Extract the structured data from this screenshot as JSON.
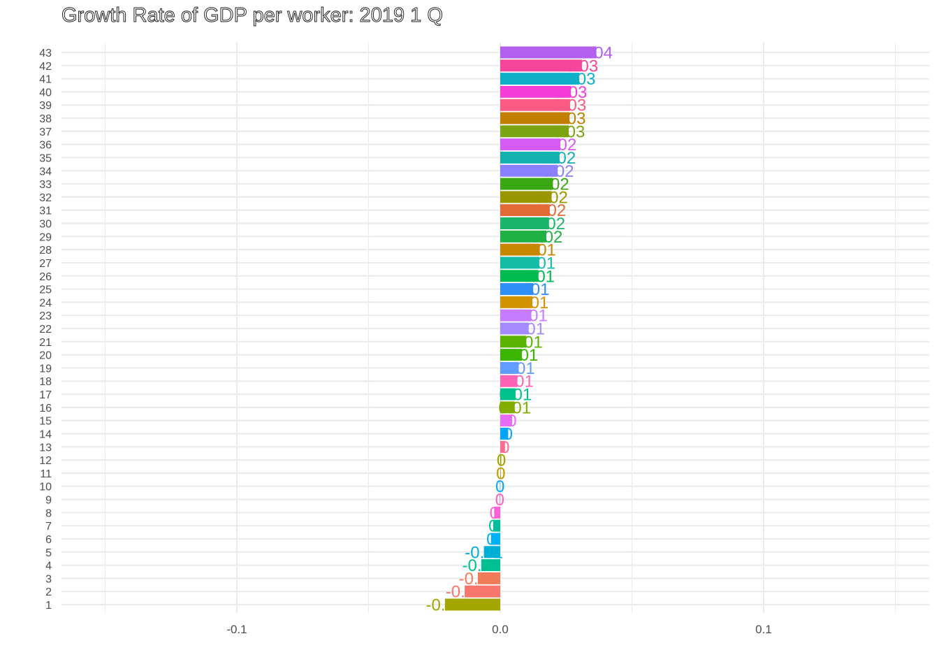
{
  "chart_data": {
    "type": "bar",
    "orientation": "horizontal",
    "title": "Growth Rate of GDP per worker: 2019 1 Q",
    "xlabel": "",
    "ylabel": "",
    "categories": [
      "1",
      "2",
      "3",
      "4",
      "5",
      "6",
      "7",
      "8",
      "9",
      "10",
      "11",
      "12",
      "13",
      "14",
      "15",
      "16",
      "17",
      "18",
      "19",
      "20",
      "21",
      "22",
      "23",
      "24",
      "25",
      "26",
      "27",
      "28",
      "29",
      "30",
      "31",
      "32",
      "33",
      "34",
      "35",
      "36",
      "37",
      "38",
      "39",
      "40",
      "41",
      "42",
      "43"
    ],
    "values": [
      -0.021,
      -0.0135,
      -0.0085,
      -0.0072,
      -0.0062,
      -0.0035,
      -0.0027,
      -0.0023,
      -0.0002,
      -0.0001,
      0.0002,
      0.0004,
      0.0018,
      0.003,
      0.0045,
      0.0055,
      0.0058,
      0.0065,
      0.007,
      0.0082,
      0.0099,
      0.0108,
      0.0118,
      0.0122,
      0.0125,
      0.0145,
      0.0148,
      0.015,
      0.0175,
      0.0185,
      0.0188,
      0.0195,
      0.02,
      0.0218,
      0.0225,
      0.0228,
      0.026,
      0.0263,
      0.0265,
      0.0268,
      0.03,
      0.031,
      0.0365
    ],
    "labels": [
      "-0.02",
      "-0.01",
      "-0.01",
      "-0.01",
      "-0.01",
      "0",
      "0",
      "0",
      "0",
      "0",
      "0",
      "0",
      "0",
      "0",
      "0",
      "0.01",
      "0.01",
      "0.01",
      "0.01",
      "0.01",
      "0.01",
      "0.01",
      "0.01",
      "0.01",
      "0.01",
      "0.01",
      "0.01",
      "0.01",
      "0.02",
      "0.02",
      "0.02",
      "0.02",
      "0.02",
      "0.02",
      "0.02",
      "0.02",
      "0.03",
      "0.03",
      "0.03",
      "0.03",
      "0.03",
      "0.03",
      "0.04"
    ],
    "colors": [
      "#A3A500",
      "#F8766D",
      "#F07C58",
      "#00BF93",
      "#00AFD6",
      "#00B0F6",
      "#00BD9C",
      "#FB61D7",
      "#FF62BC",
      "#00A9FF",
      "#C49A00",
      "#A1A400",
      "#FF6C91",
      "#00A6FF",
      "#E76BF3",
      "#81AD00",
      "#00C08B",
      "#FF63B6",
      "#619CFF",
      "#3CB500",
      "#5AB300",
      "#A58AFF",
      "#C77CFF",
      "#D39200",
      "#2E8FF8",
      "#00BB4F",
      "#13BDA5",
      "#C78600",
      "#20B145",
      "#1BB66A",
      "#E26A36",
      "#9A9600",
      "#3AA812",
      "#8A80FF",
      "#15B0B0",
      "#D65AF4",
      "#7AA413",
      "#C27E00",
      "#FC5B84",
      "#F53ED8",
      "#10AFC8",
      "#F6469B",
      "#B360F0"
    ],
    "xlim": [
      -0.1675,
      0.162
    ],
    "xticks": [
      -0.1,
      0.0,
      0.1
    ],
    "xtick_labels": [
      "-0.1",
      "0.0",
      "0.1"
    ],
    "grid": true,
    "legend": "none"
  }
}
